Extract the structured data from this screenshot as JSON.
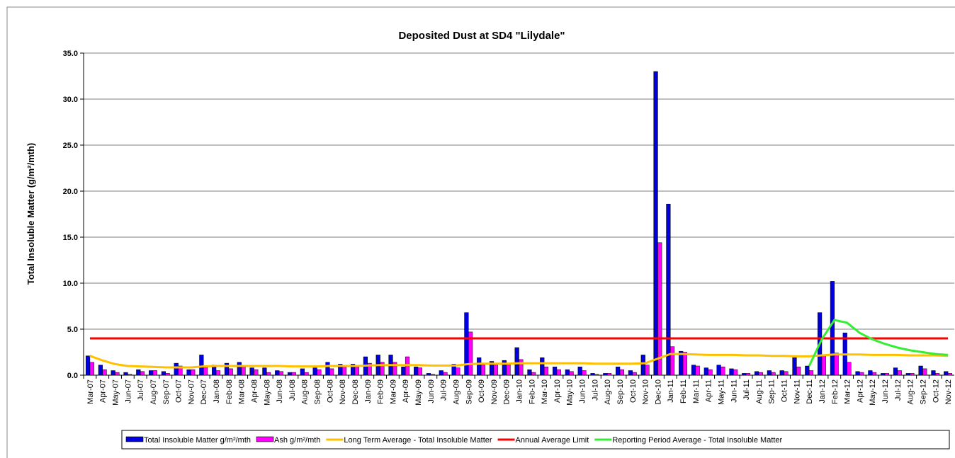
{
  "chart_data": {
    "type": "bar",
    "title": "Deposited Dust at SD4 \"Lilydale\"",
    "y_label": "Total Insoluble Matter  (g/m²/mth)",
    "categories": [
      "Mar-07",
      "Apr-07",
      "May-07",
      "Jun-07",
      "Jul-07",
      "Aug-07",
      "Sep-07",
      "Oct-07",
      "Nov-07",
      "Dec-07",
      "Jan-08",
      "Feb-08",
      "Mar-08",
      "Apr-08",
      "May-08",
      "Jun-08",
      "Jul-08",
      "Aug-08",
      "Sep-08",
      "Oct-08",
      "Nov-08",
      "Dec-08",
      "Jan-09",
      "Feb-09",
      "Mar-09",
      "Apr-09",
      "May-09",
      "Jun-09",
      "Jul-09",
      "Aug-09",
      "Sep-09",
      "Oct-09",
      "Nov-09",
      "Dec-09",
      "Jan-10",
      "Feb-10",
      "Mar-10",
      "Apr-10",
      "May-10",
      "Jun-10",
      "Jul-10",
      "Aug-10",
      "Sep-10",
      "Oct-10",
      "Nov-10",
      "Dec-10",
      "Jan-11",
      "Feb-11",
      "Mar-11",
      "Apr-11",
      "May-11",
      "Jun-11",
      "Jul-11",
      "Aug-11",
      "Sep-11",
      "Oct-11",
      "Nov-11",
      "Dec-11",
      "Jan-12",
      "Feb-12",
      "Mar-12",
      "Apr-12",
      "May-12",
      "Jun-12",
      "Jul-12",
      "Aug-12",
      "Sep-12",
      "Oct-12",
      "Nov-12"
    ],
    "series": [
      {
        "name": "Total Insoluble Matter g/m²/mth",
        "type": "bar",
        "color": "#0000dd",
        "values": [
          2.1,
          1.1,
          0.5,
          0.3,
          0.6,
          0.5,
          0.4,
          1.3,
          0.6,
          2.2,
          1.1,
          1.3,
          1.4,
          0.8,
          0.8,
          0.5,
          0.3,
          0.7,
          0.8,
          1.4,
          1.2,
          1.2,
          2.0,
          2.2,
          2.2,
          0.9,
          0.9,
          0.2,
          0.5,
          1.2,
          6.8,
          1.9,
          1.5,
          1.6,
          3.0,
          0.6,
          1.9,
          0.9,
          0.6,
          0.9,
          0.2,
          0.2,
          0.9,
          0.5,
          2.2,
          33.0,
          18.6,
          2.6,
          1.1,
          0.8,
          1.1,
          0.7,
          0.2,
          0.4,
          0.5,
          0.5,
          1.9,
          1.0,
          6.8,
          10.2,
          4.6,
          0.4,
          0.5,
          0.2,
          0.8,
          0.2,
          1.0,
          0.5,
          0.4
        ]
      },
      {
        "name": "Ash g/m²/mth",
        "type": "bar",
        "color": "#ff00ff",
        "values": [
          1.4,
          0.6,
          0.3,
          0.1,
          0.4,
          0.5,
          0.2,
          1.0,
          0.6,
          0.9,
          0.5,
          0.7,
          0.9,
          0.6,
          0.3,
          0.4,
          0.3,
          0.3,
          0.6,
          0.7,
          1.0,
          0.9,
          1.3,
          1.4,
          1.4,
          2.0,
          0.8,
          0.1,
          0.3,
          0.8,
          4.7,
          1.1,
          1.2,
          1.2,
          1.7,
          0.3,
          0.9,
          0.6,
          0.4,
          0.5,
          0.1,
          0.2,
          0.6,
          0.3,
          1.1,
          14.4,
          3.1,
          2.5,
          1.0,
          0.6,
          0.9,
          0.6,
          0.2,
          0.3,
          0.3,
          0.4,
          0.9,
          0.5,
          2.2,
          2.4,
          1.4,
          0.3,
          0.3,
          0.2,
          0.5,
          0.2,
          0.7,
          0.2,
          0.2
        ]
      },
      {
        "name": "Long Term Average - Total Insoluble Matter",
        "type": "line",
        "color": "#ffc000",
        "values": [
          2.1,
          1.6,
          1.2,
          1.0,
          0.95,
          0.9,
          0.85,
          0.85,
          0.85,
          0.95,
          1.0,
          1.0,
          1.0,
          1.0,
          1.0,
          1.0,
          0.95,
          0.95,
          0.95,
          1.0,
          1.0,
          1.0,
          1.05,
          1.1,
          1.1,
          1.1,
          1.1,
          1.05,
          1.05,
          1.05,
          1.2,
          1.25,
          1.25,
          1.25,
          1.3,
          1.3,
          1.3,
          1.3,
          1.3,
          1.3,
          1.25,
          1.25,
          1.25,
          1.25,
          1.3,
          1.8,
          2.3,
          2.3,
          2.25,
          2.2,
          2.2,
          2.2,
          2.15,
          2.15,
          2.1,
          2.1,
          2.05,
          2.05,
          2.15,
          2.25,
          2.25,
          2.25,
          2.2,
          2.2,
          2.2,
          2.15,
          2.15,
          2.15,
          2.1
        ]
      },
      {
        "name": "Annual Average Limit",
        "type": "line",
        "color": "#ff0000",
        "values": [
          4,
          4,
          4,
          4,
          4,
          4,
          4,
          4,
          4,
          4,
          4,
          4,
          4,
          4,
          4,
          4,
          4,
          4,
          4,
          4,
          4,
          4,
          4,
          4,
          4,
          4,
          4,
          4,
          4,
          4,
          4,
          4,
          4,
          4,
          4,
          4,
          4,
          4,
          4,
          4,
          4,
          4,
          4,
          4,
          4,
          4,
          4,
          4,
          4,
          4,
          4,
          4,
          4,
          4,
          4,
          4,
          4,
          4,
          4,
          4,
          4,
          4,
          4,
          4,
          4,
          4,
          4,
          4,
          4
        ]
      },
      {
        "name": "Reporting Period Average - Total Insoluble Matter",
        "type": "line",
        "color": "#33ee33",
        "values": [
          null,
          null,
          null,
          null,
          null,
          null,
          null,
          null,
          null,
          null,
          null,
          null,
          null,
          null,
          null,
          null,
          null,
          null,
          null,
          null,
          null,
          null,
          null,
          null,
          null,
          null,
          null,
          null,
          null,
          null,
          null,
          null,
          null,
          null,
          null,
          null,
          null,
          null,
          null,
          null,
          null,
          null,
          null,
          null,
          null,
          null,
          null,
          null,
          null,
          null,
          null,
          null,
          null,
          null,
          null,
          null,
          null,
          1.0,
          3.9,
          6.0,
          5.7,
          4.6,
          3.9,
          3.4,
          3.0,
          2.7,
          2.5,
          2.3,
          2.2
        ]
      }
    ],
    "ylim": [
      0,
      35
    ],
    "yticks": [
      {
        "value": 0,
        "label": "0.0"
      },
      {
        "value": 5,
        "label": "5.0"
      },
      {
        "value": 10,
        "label": "10.0"
      },
      {
        "value": 15,
        "label": "15.0"
      },
      {
        "value": 20,
        "label": "20.0"
      },
      {
        "value": 25,
        "label": "25.0"
      },
      {
        "value": 30,
        "label": "30.0"
      },
      {
        "value": 35,
        "label": "35.0"
      }
    ],
    "grid": true,
    "legend": "bottom"
  }
}
